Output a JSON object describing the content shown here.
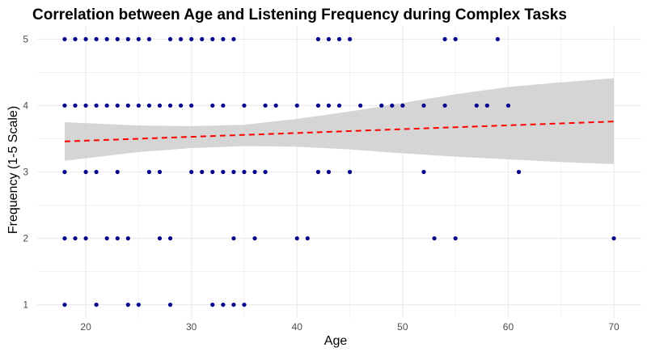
{
  "chart_data": {
    "type": "scatter",
    "title": "Correlation between Age and Listening Frequency during Complex Tasks",
    "xlabel": "Age",
    "ylabel": "Frequency (1-5 Scale)",
    "xlim": [
      15.4,
      72.6
    ],
    "ylim": [
      0.8,
      5.2
    ],
    "x_ticks": [
      20,
      30,
      40,
      50,
      60,
      70
    ],
    "y_ticks": [
      1,
      2,
      3,
      4,
      5
    ],
    "grid": true,
    "legend": "none",
    "points": [
      {
        "x": 18,
        "y": 5
      },
      {
        "x": 19,
        "y": 5
      },
      {
        "x": 20,
        "y": 5
      },
      {
        "x": 21,
        "y": 5
      },
      {
        "x": 22,
        "y": 5
      },
      {
        "x": 23,
        "y": 5
      },
      {
        "x": 24,
        "y": 5
      },
      {
        "x": 25,
        "y": 5
      },
      {
        "x": 26,
        "y": 5
      },
      {
        "x": 28,
        "y": 5
      },
      {
        "x": 29,
        "y": 5
      },
      {
        "x": 30,
        "y": 5
      },
      {
        "x": 31,
        "y": 5
      },
      {
        "x": 32,
        "y": 5
      },
      {
        "x": 33,
        "y": 5
      },
      {
        "x": 34,
        "y": 5
      },
      {
        "x": 42,
        "y": 5
      },
      {
        "x": 43,
        "y": 5
      },
      {
        "x": 44,
        "y": 5
      },
      {
        "x": 45,
        "y": 5
      },
      {
        "x": 54,
        "y": 5
      },
      {
        "x": 55,
        "y": 5
      },
      {
        "x": 59,
        "y": 5
      },
      {
        "x": 18,
        "y": 4
      },
      {
        "x": 19,
        "y": 4
      },
      {
        "x": 20,
        "y": 4
      },
      {
        "x": 21,
        "y": 4
      },
      {
        "x": 22,
        "y": 4
      },
      {
        "x": 23,
        "y": 4
      },
      {
        "x": 24,
        "y": 4
      },
      {
        "x": 25,
        "y": 4
      },
      {
        "x": 26,
        "y": 4
      },
      {
        "x": 27,
        "y": 4
      },
      {
        "x": 28,
        "y": 4
      },
      {
        "x": 29,
        "y": 4
      },
      {
        "x": 30,
        "y": 4
      },
      {
        "x": 32,
        "y": 4
      },
      {
        "x": 33,
        "y": 4
      },
      {
        "x": 35,
        "y": 4
      },
      {
        "x": 37,
        "y": 4
      },
      {
        "x": 38,
        "y": 4
      },
      {
        "x": 40,
        "y": 4
      },
      {
        "x": 42,
        "y": 4
      },
      {
        "x": 43,
        "y": 4
      },
      {
        "x": 44,
        "y": 4
      },
      {
        "x": 46,
        "y": 4
      },
      {
        "x": 48,
        "y": 4
      },
      {
        "x": 49,
        "y": 4
      },
      {
        "x": 50,
        "y": 4
      },
      {
        "x": 52,
        "y": 4
      },
      {
        "x": 54,
        "y": 4
      },
      {
        "x": 57,
        "y": 4
      },
      {
        "x": 58,
        "y": 4
      },
      {
        "x": 60,
        "y": 4
      },
      {
        "x": 18,
        "y": 3
      },
      {
        "x": 20,
        "y": 3
      },
      {
        "x": 21,
        "y": 3
      },
      {
        "x": 23,
        "y": 3
      },
      {
        "x": 26,
        "y": 3
      },
      {
        "x": 27,
        "y": 3
      },
      {
        "x": 30,
        "y": 3
      },
      {
        "x": 31,
        "y": 3
      },
      {
        "x": 32,
        "y": 3
      },
      {
        "x": 33,
        "y": 3
      },
      {
        "x": 34,
        "y": 3
      },
      {
        "x": 35,
        "y": 3
      },
      {
        "x": 36,
        "y": 3
      },
      {
        "x": 37,
        "y": 3
      },
      {
        "x": 42,
        "y": 3
      },
      {
        "x": 43,
        "y": 3
      },
      {
        "x": 45,
        "y": 3
      },
      {
        "x": 52,
        "y": 3
      },
      {
        "x": 61,
        "y": 3
      },
      {
        "x": 18,
        "y": 2
      },
      {
        "x": 19,
        "y": 2
      },
      {
        "x": 20,
        "y": 2
      },
      {
        "x": 22,
        "y": 2
      },
      {
        "x": 23,
        "y": 2
      },
      {
        "x": 24,
        "y": 2
      },
      {
        "x": 27,
        "y": 2
      },
      {
        "x": 28,
        "y": 2
      },
      {
        "x": 34,
        "y": 2
      },
      {
        "x": 36,
        "y": 2
      },
      {
        "x": 40,
        "y": 2
      },
      {
        "x": 41,
        "y": 2
      },
      {
        "x": 53,
        "y": 2
      },
      {
        "x": 55,
        "y": 2
      },
      {
        "x": 70,
        "y": 2
      },
      {
        "x": 18,
        "y": 1
      },
      {
        "x": 21,
        "y": 1
      },
      {
        "x": 24,
        "y": 1
      },
      {
        "x": 25,
        "y": 1
      },
      {
        "x": 28,
        "y": 1
      },
      {
        "x": 32,
        "y": 1
      },
      {
        "x": 33,
        "y": 1
      },
      {
        "x": 34,
        "y": 1
      },
      {
        "x": 35,
        "y": 1
      }
    ],
    "trend_line": {
      "style": "dashed",
      "color": "#ff0000",
      "points": [
        {
          "x": 18,
          "y": 3.46
        },
        {
          "x": 70,
          "y": 3.76
        }
      ]
    },
    "confidence_band": {
      "color": "#d3d3d3",
      "points": [
        {
          "x": 18,
          "lower": 3.17,
          "upper": 3.75
        },
        {
          "x": 25,
          "lower": 3.3,
          "upper": 3.7
        },
        {
          "x": 30,
          "lower": 3.36,
          "upper": 3.69
        },
        {
          "x": 35,
          "lower": 3.39,
          "upper": 3.71
        },
        {
          "x": 40,
          "lower": 3.38,
          "upper": 3.8
        },
        {
          "x": 45,
          "lower": 3.34,
          "upper": 3.91
        },
        {
          "x": 50,
          "lower": 3.28,
          "upper": 4.04
        },
        {
          "x": 55,
          "lower": 3.23,
          "upper": 4.17
        },
        {
          "x": 60,
          "lower": 3.19,
          "upper": 4.28
        },
        {
          "x": 65,
          "lower": 3.15,
          "upper": 4.35
        },
        {
          "x": 70,
          "lower": 3.12,
          "upper": 4.41
        }
      ]
    },
    "colors": {
      "points": "#00008b",
      "grid": "#ebebeb"
    }
  }
}
